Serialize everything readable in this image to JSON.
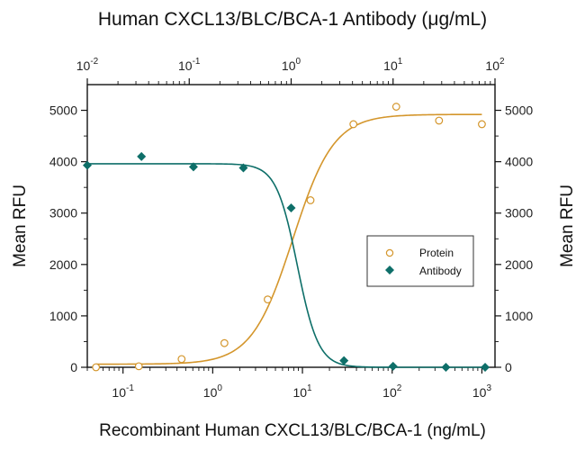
{
  "chart_data": {
    "type": "scatter",
    "title": "Human CXCL13/BLC/BCA-1 Antibody (μg/mL)",
    "xlabel": "Recombinant Human CXCL13/BLC/BCA-1 (ng/mL)",
    "ylabel": "Mean RFU",
    "ylabel_right": "Mean RFU",
    "x_bottom": {
      "scale": "log",
      "range": [
        0.04,
        1400
      ],
      "ticks": [
        {
          "base": "10",
          "exp": "-1",
          "value": 0.1
        },
        {
          "base": "10",
          "exp": "0",
          "value": 1
        },
        {
          "base": "10",
          "exp": "1",
          "value": 10
        },
        {
          "base": "10",
          "exp": "2",
          "value": 100
        },
        {
          "base": "10",
          "exp": "3",
          "value": 1000
        }
      ]
    },
    "x_top": {
      "scale": "log",
      "range": [
        0.01,
        100
      ],
      "ticks": [
        {
          "base": "10",
          "exp": "-2",
          "value": 0.01
        },
        {
          "base": "10",
          "exp": "-1",
          "value": 0.1
        },
        {
          "base": "10",
          "exp": "0",
          "value": 1
        },
        {
          "base": "10",
          "exp": "1",
          "value": 10
        },
        {
          "base": "10",
          "exp": "2",
          "value": 100
        }
      ]
    },
    "ylim": [
      0,
      5500
    ],
    "yticks": [
      0,
      1000,
      2000,
      3000,
      4000,
      5000
    ],
    "ytick_labels": [
      "0",
      "1000",
      "2000",
      "3000",
      "4000",
      "5000"
    ],
    "legend": {
      "position": "center-right",
      "entries": [
        "Protein",
        "Antibody"
      ]
    },
    "series": [
      {
        "name": "Protein",
        "axis": "bottom",
        "marker": "open-circle",
        "color": "#D4962C",
        "points": [
          {
            "x": 0.05,
            "y": 0
          },
          {
            "x": 0.15,
            "y": 20
          },
          {
            "x": 0.45,
            "y": 160
          },
          {
            "x": 1.35,
            "y": 470
          },
          {
            "x": 4.1,
            "y": 1320
          },
          {
            "x": 12.3,
            "y": 3250
          },
          {
            "x": 37,
            "y": 4730
          },
          {
            "x": 111,
            "y": 5070
          },
          {
            "x": 333,
            "y": 4800
          },
          {
            "x": 1000,
            "y": 4730
          }
        ],
        "fit": {
          "bottom": 60,
          "top": 4920,
          "ec50": 7.8,
          "hill": 1.9
        }
      },
      {
        "name": "Antibody",
        "axis": "top",
        "marker": "filled-diamond",
        "color": "#0E6F69",
        "points": [
          {
            "x": 0.01,
            "y": 3930
          },
          {
            "x": 0.034,
            "y": 4100
          },
          {
            "x": 0.11,
            "y": 3900
          },
          {
            "x": 0.34,
            "y": 3880
          },
          {
            "x": 1.0,
            "y": 3100
          },
          {
            "x": 3.3,
            "y": 130
          },
          {
            "x": 10,
            "y": 20
          },
          {
            "x": 33,
            "y": 0
          },
          {
            "x": 80,
            "y": 0
          }
        ],
        "fit": {
          "bottom": 0,
          "top": 3960,
          "ic50": 1.15,
          "hill": -4.2
        }
      }
    ]
  }
}
